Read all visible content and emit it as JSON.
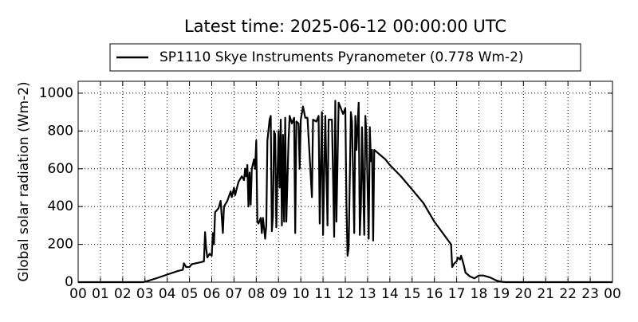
{
  "chart_data": {
    "type": "line",
    "title": "Latest time: 2025-06-12 00:00:00 UTC",
    "y_label": "Global solar radiation (Wm-2)",
    "x": [
      0,
      2.9,
      3.0,
      3.5,
      4.0,
      4.5,
      4.7,
      4.75,
      4.85,
      5.0,
      5.1,
      5.5,
      5.65,
      5.7,
      5.75,
      5.8,
      5.9,
      6.0,
      6.05,
      6.1,
      6.15,
      6.3,
      6.4,
      6.5,
      6.55,
      6.7,
      6.85,
      6.9,
      7.0,
      7.05,
      7.2,
      7.35,
      7.45,
      7.5,
      7.55,
      7.6,
      7.65,
      7.7,
      7.75,
      7.8,
      7.9,
      7.95,
      8.0,
      8.05,
      8.1,
      8.2,
      8.25,
      8.3,
      8.4,
      8.45,
      8.5,
      8.6,
      8.65,
      8.7,
      8.75,
      8.8,
      8.85,
      8.9,
      9.0,
      9.05,
      9.1,
      9.15,
      9.2,
      9.25,
      9.3,
      9.35,
      9.45,
      9.5,
      9.6,
      9.7,
      9.75,
      9.8,
      9.9,
      9.95,
      10.0,
      10.1,
      10.2,
      10.3,
      10.5,
      10.55,
      10.7,
      10.8,
      10.85,
      10.95,
      11.0,
      11.1,
      11.2,
      11.25,
      11.4,
      11.5,
      11.55,
      11.6,
      11.7,
      11.8,
      11.9,
      12.0,
      12.05,
      12.1,
      12.15,
      12.25,
      12.3,
      12.4,
      12.45,
      12.5,
      12.6,
      12.65,
      12.7,
      12.75,
      12.85,
      12.9,
      12.95,
      13.05,
      13.1,
      13.15,
      13.2,
      13.25,
      13.3,
      13.5,
      13.8,
      14.0,
      14.5,
      15.0,
      15.5,
      16.0,
      16.5,
      16.75,
      16.8,
      16.9,
      17.0,
      17.05,
      17.15,
      17.2,
      17.3,
      17.4,
      17.6,
      17.8,
      18.0,
      18.2,
      18.5,
      18.8,
      19.0,
      19.2,
      24
    ],
    "series": [
      {
        "name": "SP1110 Skye Instruments Pyranometer (0.778 Wm-2)",
        "color": "#000000",
        "values": [
          0,
          0,
          2,
          20,
          40,
          60,
          65,
          100,
          80,
          80,
          95,
          105,
          110,
          265,
          180,
          130,
          150,
          140,
          260,
          200,
          370,
          390,
          430,
          260,
          400,
          430,
          480,
          450,
          500,
          460,
          530,
          560,
          540,
          600,
          560,
          620,
          400,
          580,
          410,
          600,
          650,
          600,
          750,
          320,
          310,
          340,
          260,
          340,
          230,
          300,
          750,
          860,
          880,
          270,
          350,
          800,
          780,
          290,
          800,
          500,
          860,
          300,
          780,
          320,
          870,
          320,
          750,
          880,
          840,
          870,
          260,
          850,
          840,
          600,
          860,
          930,
          870,
          870,
          450,
          860,
          850,
          880,
          310,
          900,
          250,
          880,
          300,
          860,
          860,
          240,
          960,
          320,
          950,
          920,
          890,
          920,
          420,
          140,
          180,
          900,
          850,
          260,
          880,
          700,
          950,
          250,
          400,
          820,
          250,
          880,
          780,
          230,
          820,
          640,
          700,
          220,
          700,
          680,
          650,
          620,
          560,
          490,
          420,
          320,
          240,
          200,
          80,
          100,
          110,
          130,
          120,
          140,
          100,
          50,
          30,
          20,
          35,
          35,
          25,
          8,
          2,
          0,
          0
        ]
      }
    ],
    "xlim": [
      0,
      24
    ],
    "xticks": [
      {
        "value": 0,
        "label": "00"
      },
      {
        "value": 1,
        "label": "01"
      },
      {
        "value": 2,
        "label": "02"
      },
      {
        "value": 3,
        "label": "03"
      },
      {
        "value": 4,
        "label": "04"
      },
      {
        "value": 5,
        "label": "05"
      },
      {
        "value": 6,
        "label": "06"
      },
      {
        "value": 7,
        "label": "07"
      },
      {
        "value": 8,
        "label": "08"
      },
      {
        "value": 9,
        "label": "09"
      },
      {
        "value": 10,
        "label": "10"
      },
      {
        "value": 11,
        "label": "11"
      },
      {
        "value": 12,
        "label": "12"
      },
      {
        "value": 13,
        "label": "13"
      },
      {
        "value": 14,
        "label": "14"
      },
      {
        "value": 15,
        "label": "15"
      },
      {
        "value": 16,
        "label": "16"
      },
      {
        "value": 17,
        "label": "17"
      },
      {
        "value": 18,
        "label": "18"
      },
      {
        "value": 19,
        "label": "19"
      },
      {
        "value": 20,
        "label": "20"
      },
      {
        "value": 21,
        "label": "21"
      },
      {
        "value": 22,
        "label": "22"
      },
      {
        "value": 23,
        "label": "23"
      },
      {
        "value": 24,
        "label": "00"
      }
    ],
    "ylim": [
      0,
      1063
    ],
    "yticks": [
      0,
      200,
      400,
      600,
      800,
      1000
    ],
    "grid": true,
    "legend": "top"
  }
}
